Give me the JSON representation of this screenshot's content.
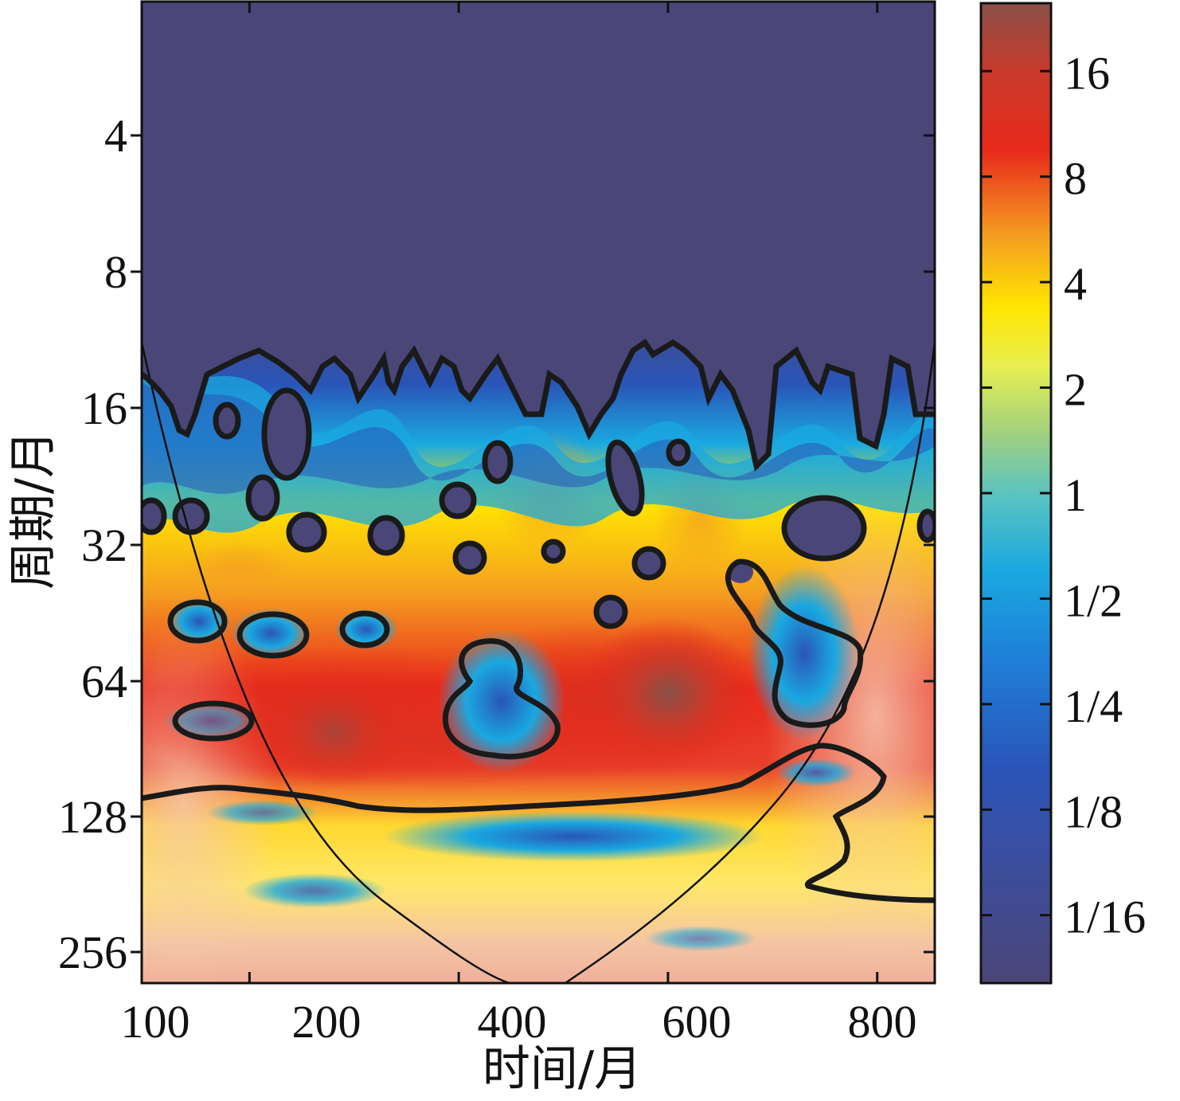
{
  "chart_data": {
    "type": "heatmap",
    "subtype": "wavelet-power-spectrum",
    "title": "",
    "xlabel": "时间/月",
    "ylabel": "周期/月",
    "x_ticks": [
      100,
      200,
      400,
      600,
      800
    ],
    "xlim": [
      97,
      855
    ],
    "y_scale": "log2",
    "y_ticks": [
      4,
      8,
      16,
      32,
      64,
      128,
      256
    ],
    "y_tick_labels": [
      "4",
      "8",
      "16",
      "32",
      "64",
      "128",
      "256"
    ],
    "ylim": [
      2,
      300
    ],
    "y_inverted": true,
    "colorbar": {
      "scale": "log2",
      "ticks": [
        0.0625,
        0.125,
        0.25,
        0.5,
        1,
        2,
        4,
        8,
        16
      ],
      "tick_labels": [
        "1/16",
        "1/8",
        "1/4",
        "1/2",
        "1",
        "2",
        "4",
        "8",
        "16"
      ],
      "range": [
        0.04,
        25
      ],
      "colors": {
        "min": "#4b4678",
        "blue": "#2a55b8",
        "cyan": "#1aa8e0",
        "green": "#9fd080",
        "yellow": "#ffe600",
        "orange": "#f5a020",
        "red": "#e82a1c",
        "max": "#8a5048"
      }
    },
    "features": [
      {
        "name": "low-power-region",
        "x_range": [
          100,
          850
        ],
        "period_range": [
          2,
          14
        ],
        "power": 0.05
      },
      {
        "name": "noisy-transition-band",
        "x_range": [
          100,
          850
        ],
        "period_range": [
          14,
          30
        ],
        "power": 0.5
      },
      {
        "name": "high-power-band",
        "x_range": [
          170,
          700
        ],
        "period_range": [
          64,
          110
        ],
        "power": 12
      },
      {
        "name": "peak",
        "x": 560,
        "period": 75,
        "power": 18
      },
      {
        "name": "peak",
        "x": 210,
        "period": 85,
        "power": 14
      },
      {
        "name": "local-minimum",
        "x": 400,
        "period": 80,
        "power": 0.4
      },
      {
        "name": "local-minimum",
        "x": 720,
        "period": 72,
        "power": 0.5
      },
      {
        "name": "long-period-band",
        "x_range": [
          100,
          850
        ],
        "period_range": [
          130,
          256
        ],
        "power": 1.5
      }
    ],
    "cone_of_influence": true,
    "significance_contours": true
  }
}
